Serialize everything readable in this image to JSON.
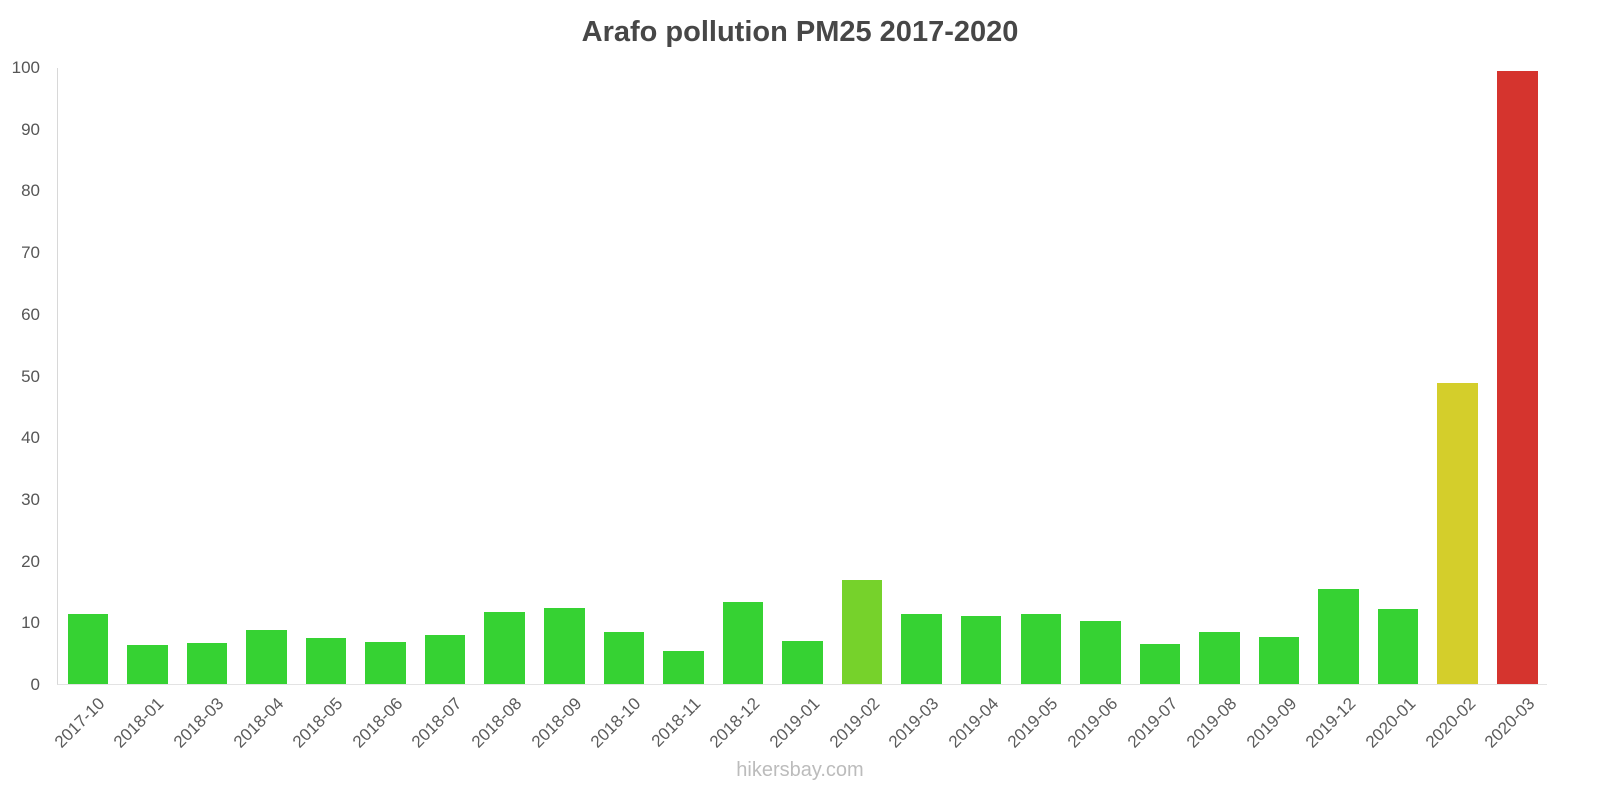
{
  "chart": {
    "title": "Arafo pollution PM25 2017-2020",
    "watermark": "hikersbay.com"
  },
  "chart_data": {
    "type": "bar",
    "title": "Arafo pollution PM25 2017-2020",
    "categories": [
      "2017-10",
      "2018-01",
      "2018-03",
      "2018-04",
      "2018-05",
      "2018-06",
      "2018-07",
      "2018-08",
      "2018-09",
      "2018-10",
      "2018-11",
      "2018-12",
      "2019-01",
      "2019-02",
      "2019-03",
      "2019-04",
      "2019-05",
      "2019-06",
      "2019-07",
      "2019-08",
      "2019-09",
      "2019-12",
      "2020-01",
      "2020-02",
      "2020-03"
    ],
    "values": [
      11.3,
      6.3,
      6.6,
      8.8,
      7.5,
      6.8,
      7.9,
      11.7,
      12.3,
      8.4,
      5.3,
      13.3,
      7.0,
      16.9,
      11.3,
      11.0,
      11.3,
      10.2,
      6.5,
      8.4,
      7.6,
      15.4,
      12.2,
      48.8,
      99.5
    ],
    "bar_colors": [
      "#36d233",
      "#36d233",
      "#36d233",
      "#36d233",
      "#36d233",
      "#36d233",
      "#36d233",
      "#36d233",
      "#36d233",
      "#36d233",
      "#36d233",
      "#36d233",
      "#36d233",
      "#76d22b",
      "#36d233",
      "#36d233",
      "#36d233",
      "#36d233",
      "#36d233",
      "#36d233",
      "#36d233",
      "#36d233",
      "#36d233",
      "#d4ce2b",
      "#d5342e"
    ],
    "xlabel": "",
    "ylabel": "",
    "ylim": [
      0,
      100
    ],
    "yticks": [
      0,
      10,
      20,
      30,
      40,
      50,
      60,
      70,
      80,
      90,
      100
    ],
    "grid": false,
    "legend": false
  }
}
